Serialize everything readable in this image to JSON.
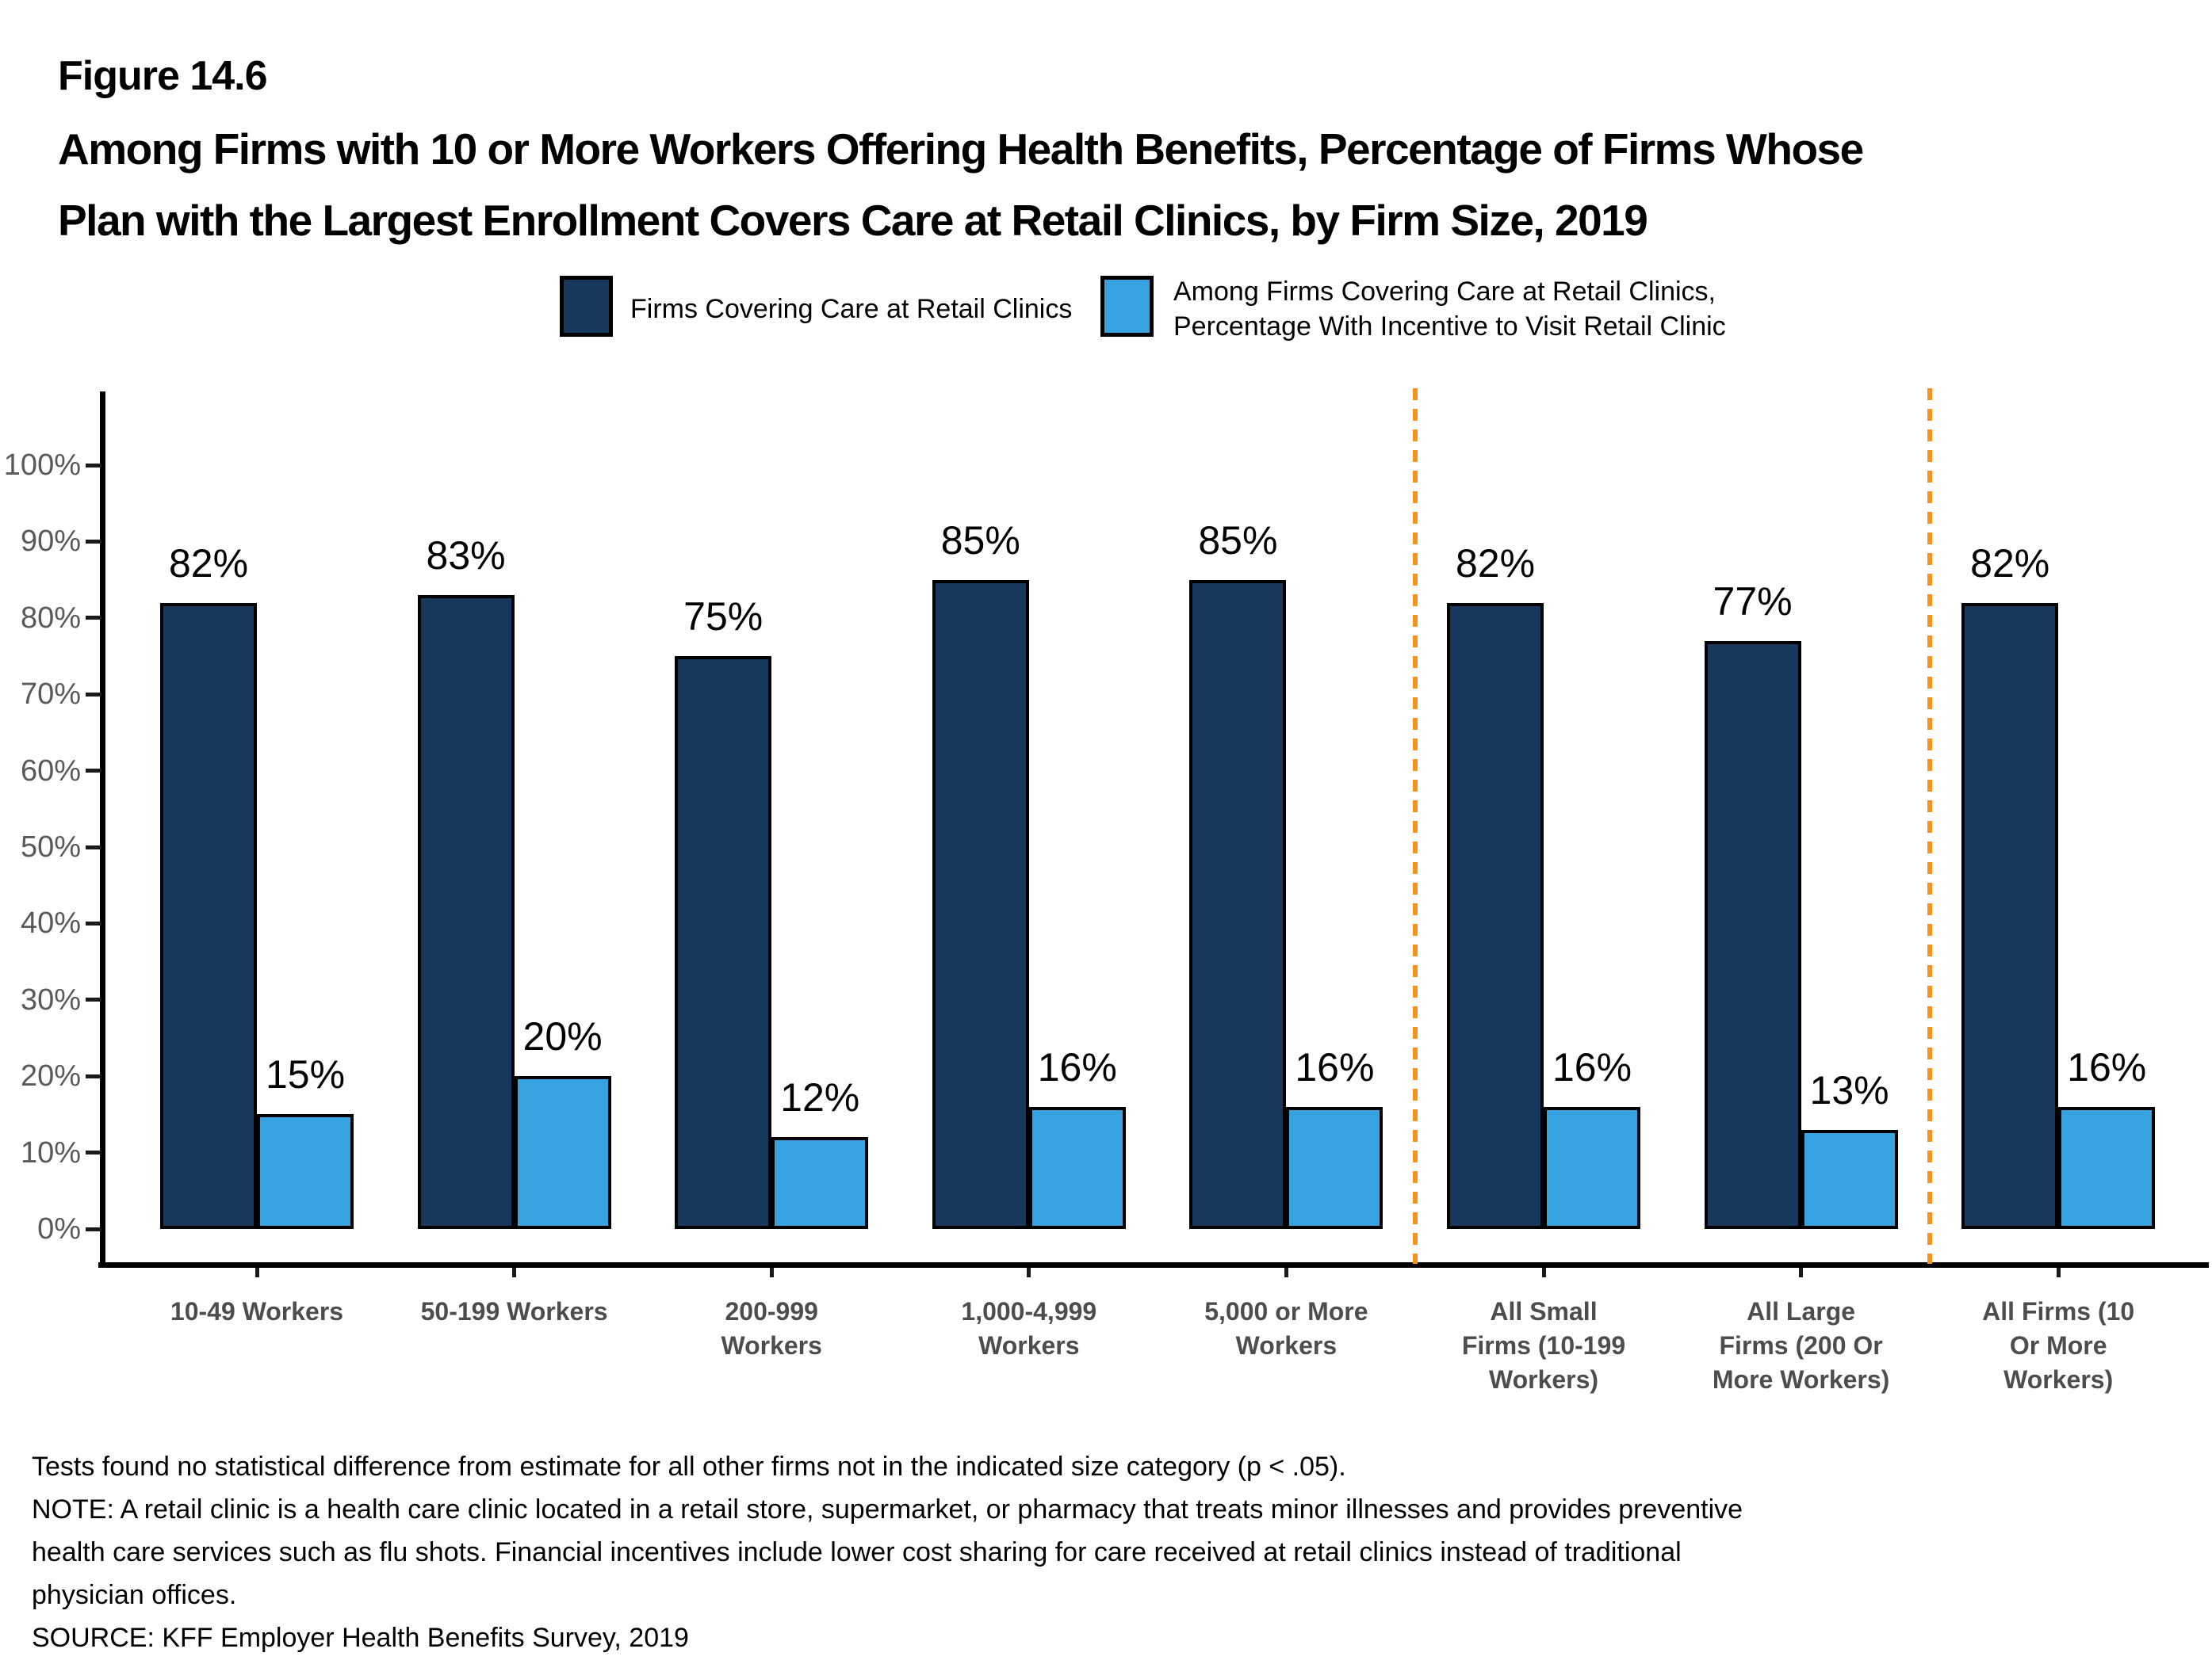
{
  "figure_label": "Figure 14.6",
  "title_lines": [
    "Among Firms with 10 or More Workers Offering Health Benefits, Percentage of Firms Whose",
    "Plan with the Largest Enrollment Covers Care at Retail Clinics, by Firm Size, 2019"
  ],
  "legend": {
    "series1_label": "Firms Covering Care at Retail Clinics",
    "series2_label_lines": [
      "Among Firms Covering Care at Retail Clinics,",
      "Percentage With Incentive to Visit Retail Clinic"
    ]
  },
  "chart_data": {
    "type": "bar",
    "title": "Among Firms with 10 or More Workers Offering Health Benefits, Percentage of Firms Whose Plan with the Largest Enrollment Covers Care at Retail Clinics, by Firm Size, 2019",
    "categories": [
      "10-49 Workers",
      "50-199 Workers",
      "200-999 Workers",
      "1,000-4,999 Workers",
      "5,000 or More Workers",
      "All Small Firms (10-199 Workers)",
      "All Large Firms (200 Or More Workers)",
      "All Firms (10 Or More Workers)"
    ],
    "category_label_lines": [
      [
        "10-49 Workers"
      ],
      [
        "50-199 Workers"
      ],
      [
        "200-999",
        "Workers"
      ],
      [
        "1,000-4,999",
        "Workers"
      ],
      [
        "5,000 or More",
        "Workers"
      ],
      [
        "All Small",
        "Firms (10-199",
        "Workers)"
      ],
      [
        "All Large",
        "Firms (200 Or",
        "More Workers)"
      ],
      [
        "All Firms (10",
        "Or More",
        "Workers)"
      ]
    ],
    "series": [
      {
        "name": "Firms Covering Care at Retail Clinics",
        "color": "#17375C",
        "values": [
          82,
          83,
          75,
          85,
          85,
          82,
          77,
          82
        ]
      },
      {
        "name": "Among Firms Covering Care at Retail Clinics, Percentage With Incentive to Visit Retail Clinic",
        "color": "#36A3E0",
        "values": [
          15,
          20,
          12,
          16,
          16,
          16,
          13,
          16
        ]
      }
    ],
    "value_suffix": "%",
    "y_ticks": [
      0,
      10,
      20,
      30,
      40,
      50,
      60,
      70,
      80,
      90,
      100
    ],
    "ylim": [
      0,
      100
    ],
    "grid": false,
    "legend_position": "top",
    "separators_after_category_index": [
      4,
      6
    ],
    "separator_color": "#F7941E",
    "axis_label_color": "#595959",
    "category_label_color": "#4D4D4D"
  },
  "footnotes": [
    "Tests found no statistical difference from estimate for all other firms not in the indicated size category (p < .05).",
    "NOTE: A retail clinic is a health care clinic located in a retail store, supermarket, or pharmacy that treats minor illnesses and provides preventive",
    "health care services such as flu shots. Financial incentives include lower cost sharing for care received at retail clinics instead of traditional",
    "physician offices.",
    "SOURCE: KFF Employer Health Benefits Survey, 2019"
  ]
}
